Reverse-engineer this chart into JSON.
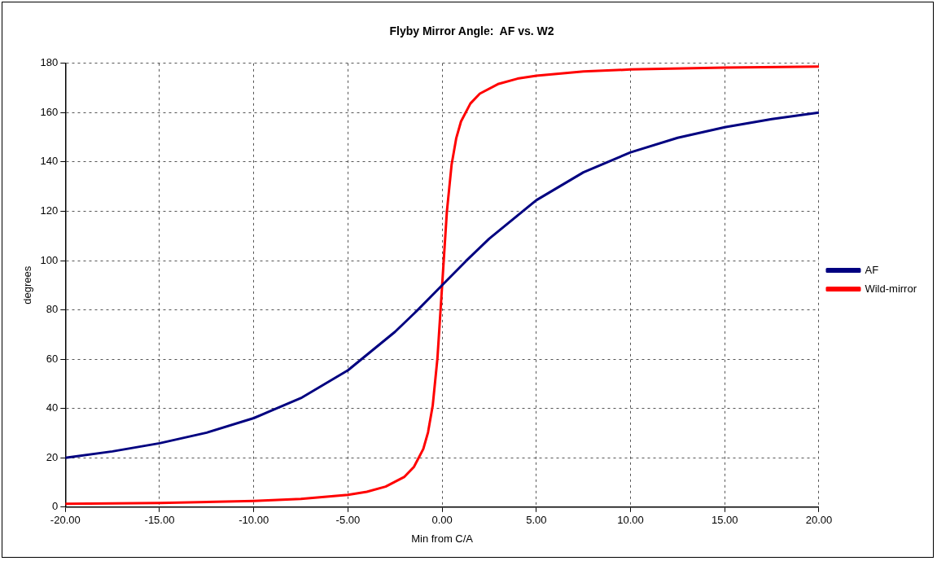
{
  "chart_data": {
    "type": "line",
    "title": "Flyby Mirror Angle:  AF vs. W2",
    "xlabel": "Min from C/A",
    "ylabel": "degrees",
    "xlim": [
      -20,
      20
    ],
    "xticks": [
      {
        "value": -20,
        "label": "-20.00"
      },
      {
        "value": -15,
        "label": "-15.00"
      },
      {
        "value": -10,
        "label": "-10.00"
      },
      {
        "value": -5,
        "label": "-5.00"
      },
      {
        "value": 0,
        "label": "0.00"
      },
      {
        "value": 5,
        "label": "5.00"
      },
      {
        "value": 10,
        "label": "10.00"
      },
      {
        "value": 15,
        "label": "15.00"
      },
      {
        "value": 20,
        "label": "20.00"
      }
    ],
    "ylim": [
      0,
      180
    ],
    "yticks": [
      0,
      20,
      40,
      60,
      80,
      100,
      120,
      140,
      160,
      180
    ],
    "grid": true,
    "legend": "right",
    "marker": "none",
    "series": [
      {
        "name": "AF",
        "color": "#000080",
        "x": [
          -20,
          -17.5,
          -15,
          -12.5,
          -10,
          -7.5,
          -5,
          -2.5,
          -1.25,
          0,
          1.25,
          2.5,
          5,
          7.5,
          10,
          12.5,
          15,
          17.5,
          20
        ],
        "values": [
          20,
          22.6,
          25.9,
          30.2,
          36.1,
          44.2,
          55.5,
          71.1,
          80.3,
          90,
          99.7,
          108.9,
          124.5,
          135.8,
          143.9,
          149.8,
          154.1,
          157.4,
          160
        ]
      },
      {
        "name": "Wild-mirror",
        "color": "#ff0000",
        "x": [
          -20,
          -15,
          -10,
          -7.5,
          -5,
          -4,
          -3,
          -2,
          -1.5,
          -1,
          -0.75,
          -0.5,
          -0.25,
          0,
          0.25,
          0.5,
          0.75,
          1,
          1.5,
          2,
          3,
          4,
          5,
          7.5,
          10,
          15,
          20
        ],
        "values": [
          1.3,
          1.7,
          2.5,
          3.3,
          5,
          6.2,
          8.3,
          12.3,
          16.3,
          23.6,
          30.3,
          41.2,
          60.3,
          90,
          119.7,
          138.8,
          149.7,
          156.4,
          163.7,
          167.7,
          171.7,
          173.8,
          175,
          176.7,
          177.5,
          178.3,
          178.7
        ]
      }
    ]
  }
}
